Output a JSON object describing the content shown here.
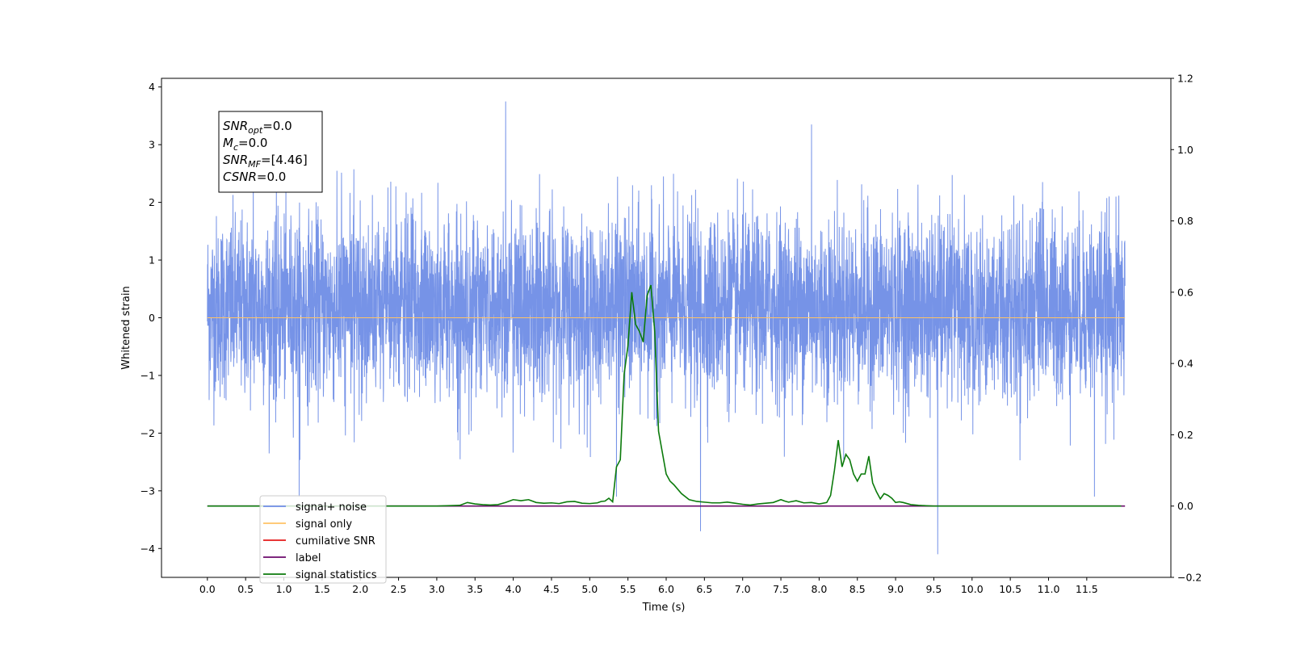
{
  "chart_data": {
    "type": "line",
    "xlabel": "Time (s)",
    "ylabel_left": "Whitened strain",
    "ylabel_right": "",
    "xlim": [
      -0.6,
      12.6
    ],
    "ylim_left": [
      -4.5,
      4.15
    ],
    "ylim_right": [
      -0.2,
      1.2
    ],
    "x_ticks": [
      "0.0",
      "0.5",
      "1.0",
      "1.5",
      "2.0",
      "2.5",
      "3.0",
      "3.5",
      "4.0",
      "4.5",
      "5.0",
      "5.5",
      "6.0",
      "6.5",
      "7.0",
      "7.5",
      "8.0",
      "8.5",
      "9.0",
      "9.5",
      "10.0",
      "10.5",
      "11.0",
      "11.5"
    ],
    "y_ticks_left": [
      "4",
      "3",
      "2",
      "1",
      "0",
      "−1",
      "−2",
      "−3",
      "−4"
    ],
    "y_ticks_right": [
      "1.2",
      "1.0",
      "0.8",
      "0.6",
      "0.4",
      "0.2",
      "0.0",
      "−0.2"
    ],
    "grid": false,
    "legend_position": "lower-left",
    "legend": [
      {
        "label": "signal+ noise",
        "color": "#6f8de6"
      },
      {
        "label": "signal only",
        "color": "#ffc266"
      },
      {
        "label": "cumilative SNR",
        "color": "#e41a1a"
      },
      {
        "label": "label",
        "color": "#6b0a6b"
      },
      {
        "label": "signal statistics",
        "color": "#0b7a0b"
      }
    ],
    "series": [
      {
        "name": "signal+ noise",
        "axis": "left",
        "description": "whitened noise, roughly in ±2 with spikes up to ~3.7 and down to ~-4.1",
        "x_range": [
          0.0,
          12.0
        ],
        "spikes": [
          {
            "x": 3.9,
            "y": 3.75
          },
          {
            "x": 5.35,
            "y": -3.1
          },
          {
            "x": 6.45,
            "y": -3.7
          },
          {
            "x": 9.55,
            "y": -4.1
          },
          {
            "x": 1.2,
            "y": -3.1
          },
          {
            "x": 0.6,
            "y": 2.6
          },
          {
            "x": 7.9,
            "y": 3.35
          },
          {
            "x": 11.6,
            "y": -3.1
          }
        ]
      },
      {
        "name": "signal only",
        "axis": "left",
        "x": [
          0.0,
          12.0
        ],
        "y": [
          0.0,
          0.0
        ]
      },
      {
        "name": "label",
        "axis": "right",
        "x": [
          0.0,
          12.0
        ],
        "y": [
          0.0,
          0.0
        ]
      },
      {
        "name": "signal statistics",
        "axis": "right",
        "x": [
          0.0,
          0.5,
          1.0,
          1.5,
          2.0,
          2.5,
          3.0,
          3.3,
          3.4,
          3.5,
          3.6,
          3.7,
          3.8,
          3.9,
          4.0,
          4.1,
          4.2,
          4.3,
          4.4,
          4.5,
          4.6,
          4.7,
          4.8,
          4.9,
          5.0,
          5.1,
          5.15,
          5.2,
          5.25,
          5.3,
          5.35,
          5.4,
          5.45,
          5.5,
          5.55,
          5.6,
          5.65,
          5.7,
          5.75,
          5.8,
          5.85,
          5.9,
          5.95,
          6.0,
          6.05,
          6.1,
          6.2,
          6.3,
          6.4,
          6.5,
          6.6,
          6.7,
          6.8,
          6.9,
          7.0,
          7.1,
          7.2,
          7.3,
          7.4,
          7.5,
          7.55,
          7.6,
          7.7,
          7.8,
          7.9,
          8.0,
          8.1,
          8.15,
          8.2,
          8.25,
          8.3,
          8.35,
          8.4,
          8.45,
          8.5,
          8.55,
          8.6,
          8.65,
          8.7,
          8.75,
          8.8,
          8.85,
          8.9,
          8.95,
          9.0,
          9.05,
          9.1,
          9.2,
          9.3,
          9.4,
          9.5,
          10.0,
          10.5,
          11.0,
          11.5,
          11.95
        ],
        "y": [
          0.0,
          0.0,
          0.0,
          0.0,
          0.0,
          0.0,
          0.0,
          0.002,
          0.01,
          0.006,
          0.004,
          0.003,
          0.004,
          0.01,
          0.018,
          0.015,
          0.018,
          0.01,
          0.008,
          0.009,
          0.007,
          0.012,
          0.013,
          0.008,
          0.007,
          0.009,
          0.013,
          0.014,
          0.022,
          0.012,
          0.11,
          0.13,
          0.37,
          0.45,
          0.6,
          0.51,
          0.49,
          0.46,
          0.59,
          0.62,
          0.49,
          0.21,
          0.15,
          0.09,
          0.07,
          0.06,
          0.035,
          0.018,
          0.013,
          0.011,
          0.009,
          0.009,
          0.011,
          0.008,
          0.005,
          0.003,
          0.006,
          0.008,
          0.01,
          0.018,
          0.014,
          0.011,
          0.015,
          0.009,
          0.01,
          0.006,
          0.01,
          0.03,
          0.1,
          0.185,
          0.11,
          0.145,
          0.13,
          0.09,
          0.07,
          0.09,
          0.09,
          0.14,
          0.065,
          0.04,
          0.02,
          0.035,
          0.03,
          0.022,
          0.01,
          0.012,
          0.01,
          0.004,
          0.002,
          0.001,
          0.0,
          0.0,
          0.0,
          0.0,
          0.0,
          0.0
        ]
      }
    ],
    "annotation": {
      "lines": [
        {
          "main": "SNR",
          "sub": "opt",
          "value": "=0.0"
        },
        {
          "main": "M",
          "sub": "c",
          "value": "=0.0"
        },
        {
          "main": "SNR",
          "sub": "MF",
          "value": "=[4.46]"
        },
        {
          "main": "CSNR",
          "sub": "",
          "value": "=0.0"
        }
      ]
    }
  }
}
